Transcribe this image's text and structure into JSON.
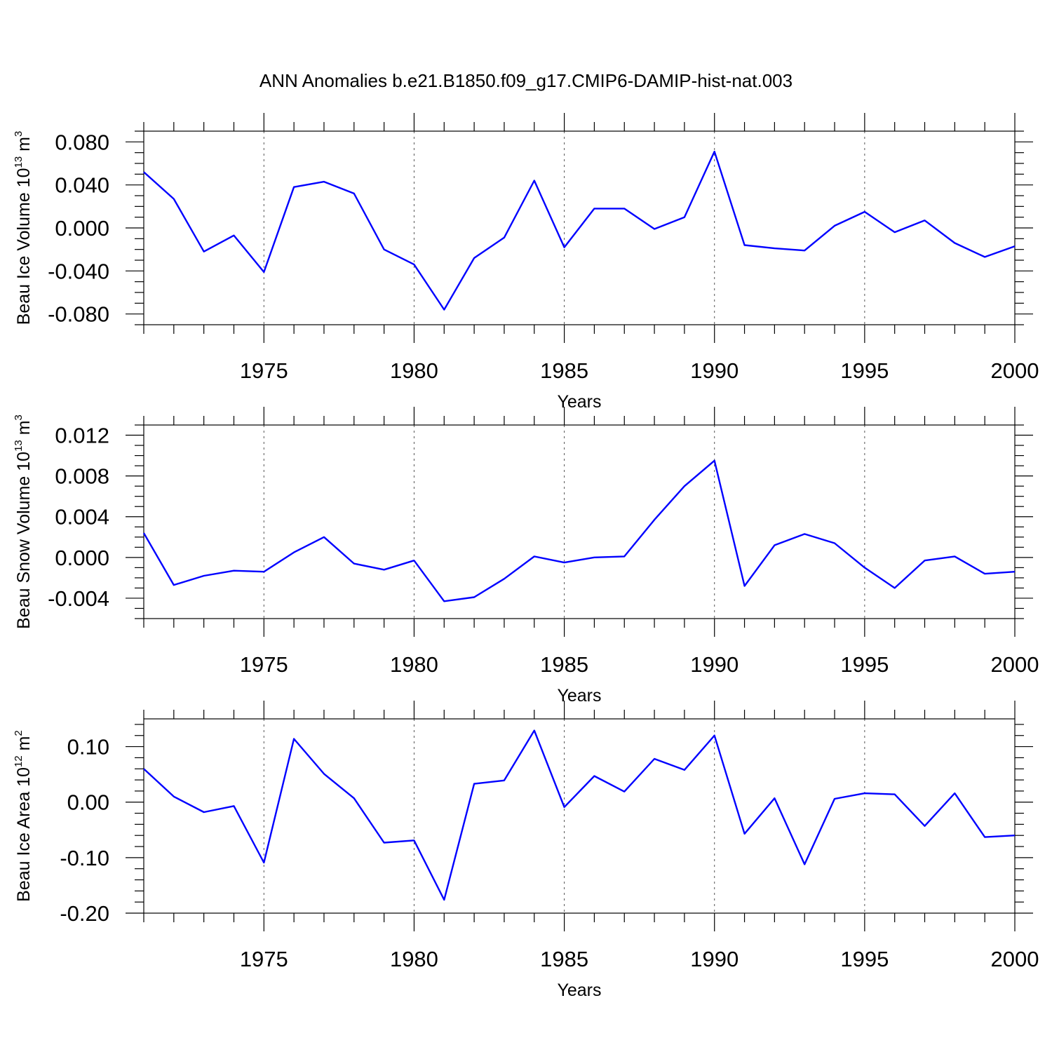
{
  "title": "ANN Anomalies b.e21.B1850.f09_g17.CMIP6-DAMIP-hist-nat.003",
  "colors": {
    "line": "#0000ff",
    "frame": "#000000",
    "grid": "#555555"
  },
  "chart_data": [
    {
      "type": "line",
      "xlabel": "Years",
      "ylabel": {
        "text": "Beau Ice Volume 10",
        "exp1": "13",
        "unit": " m",
        "exp2": "3"
      },
      "xlim": [
        1971,
        2000
      ],
      "ylim": [
        -0.09,
        0.09
      ],
      "x_ticks": [
        1975,
        1980,
        1985,
        1990,
        1995,
        2000
      ],
      "y_ticks": [
        -0.08,
        -0.04,
        0.0,
        0.04,
        0.08
      ],
      "y_tick_labels": [
        "-0.080",
        "-0.040",
        "0.000",
        "0.040",
        "0.080"
      ],
      "y_minor_step": 0.01,
      "grid": "vertical dashed at major x ticks",
      "x": [
        1971,
        1972,
        1973,
        1974,
        1975,
        1976,
        1977,
        1978,
        1979,
        1980,
        1981,
        1982,
        1983,
        1984,
        1985,
        1986,
        1987,
        1988,
        1989,
        1990,
        1991,
        1992,
        1993,
        1994,
        1995,
        1996,
        1997,
        1998,
        1999,
        2000
      ],
      "values": [
        0.052,
        0.027,
        -0.022,
        -0.007,
        -0.041,
        0.038,
        0.043,
        0.032,
        -0.02,
        -0.034,
        -0.076,
        -0.028,
        -0.009,
        0.044,
        -0.018,
        0.018,
        0.018,
        -0.001,
        0.01,
        0.071,
        -0.016,
        -0.019,
        -0.021,
        0.002,
        0.015,
        -0.004,
        0.007,
        -0.014,
        -0.027,
        -0.017
      ]
    },
    {
      "type": "line",
      "xlabel": "Years",
      "ylabel": {
        "text": "Beau Snow Volume 10",
        "exp1": "13",
        "unit": " m",
        "exp2": "3"
      },
      "xlim": [
        1971,
        2000
      ],
      "ylim": [
        -0.006,
        0.013
      ],
      "x_ticks": [
        1975,
        1980,
        1985,
        1990,
        1995,
        2000
      ],
      "y_ticks": [
        -0.004,
        0.0,
        0.004,
        0.008,
        0.012
      ],
      "y_tick_labels": [
        "-0.004",
        "0.000",
        "0.004",
        "0.008",
        "0.012"
      ],
      "y_minor_step": 0.001,
      "grid": "vertical dashed at major x ticks",
      "x": [
        1971,
        1972,
        1973,
        1974,
        1975,
        1976,
        1977,
        1978,
        1979,
        1980,
        1981,
        1982,
        1983,
        1984,
        1985,
        1986,
        1987,
        1988,
        1989,
        1990,
        1991,
        1992,
        1993,
        1994,
        1995,
        1996,
        1997,
        1998,
        1999,
        2000
      ],
      "values": [
        0.0024,
        -0.0027,
        -0.0018,
        -0.0013,
        -0.0014,
        0.0005,
        0.002,
        -0.0006,
        -0.0012,
        -0.0003,
        -0.0043,
        -0.0039,
        -0.0021,
        0.0001,
        -0.0005,
        0.0,
        0.0001,
        0.0037,
        0.007,
        0.0095,
        -0.0028,
        0.0012,
        0.0023,
        0.0014,
        -0.001,
        -0.003,
        -0.0003,
        0.0001,
        -0.0016,
        -0.0014
      ]
    },
    {
      "type": "line",
      "xlabel": "Years",
      "ylabel": {
        "text": "Beau Ice Area 10",
        "exp1": "12",
        "unit": " m",
        "exp2": "2"
      },
      "xlim": [
        1971,
        2000
      ],
      "ylim": [
        -0.2,
        0.15
      ],
      "x_ticks": [
        1975,
        1980,
        1985,
        1990,
        1995,
        2000
      ],
      "y_ticks": [
        -0.2,
        -0.1,
        0.0,
        0.1
      ],
      "y_tick_labels": [
        "-0.20",
        "-0.10",
        "0.00",
        "0.10"
      ],
      "y_minor_step": 0.02,
      "grid": "vertical dashed at major x ticks",
      "x": [
        1971,
        1972,
        1973,
        1974,
        1975,
        1976,
        1977,
        1978,
        1979,
        1980,
        1981,
        1982,
        1983,
        1984,
        1985,
        1986,
        1987,
        1988,
        1989,
        1990,
        1991,
        1992,
        1993,
        1994,
        1995,
        1996,
        1997,
        1998,
        1999,
        2000
      ],
      "values": [
        0.06,
        0.01,
        -0.018,
        -0.007,
        -0.109,
        0.114,
        0.051,
        0.007,
        -0.073,
        -0.069,
        -0.176,
        0.033,
        0.039,
        0.129,
        -0.009,
        0.047,
        0.019,
        0.078,
        0.058,
        0.12,
        -0.057,
        0.007,
        -0.112,
        0.006,
        0.016,
        0.014,
        -0.043,
        0.016,
        -0.063,
        -0.06
      ]
    }
  ]
}
